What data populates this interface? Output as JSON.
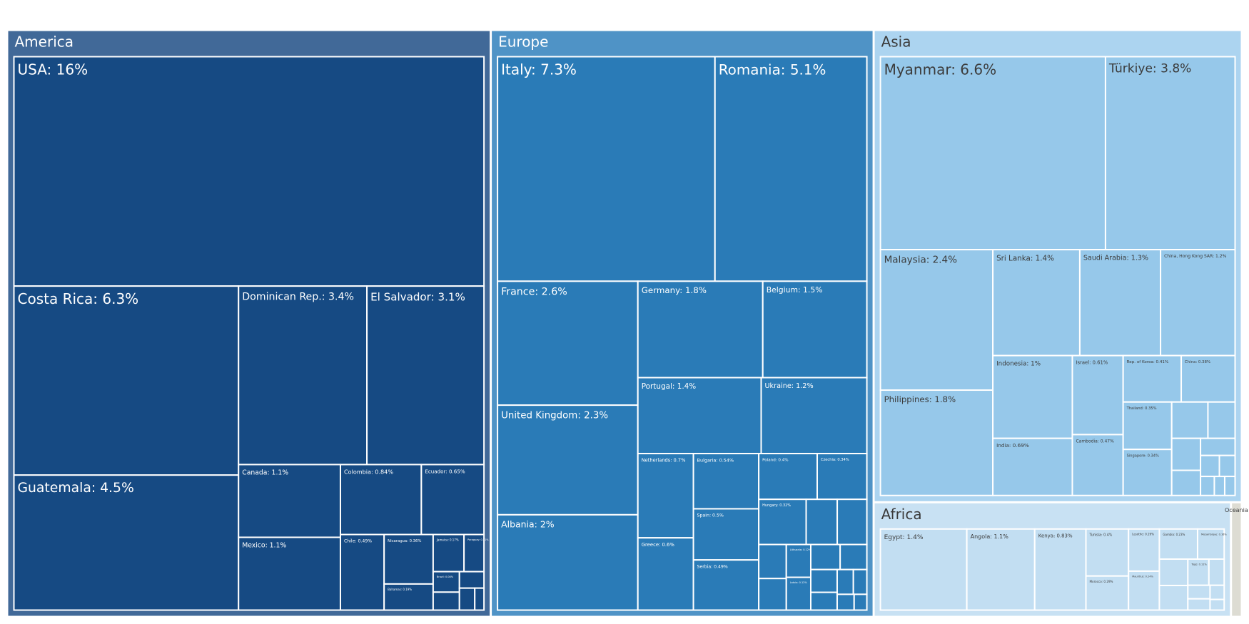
{
  "chart_data": {
    "type": "treemap",
    "value_unit": "%",
    "groups": [
      {
        "name": "America",
        "label": "America",
        "fill": "#416998",
        "tile_fill": "#164a83",
        "text_color": "#ffffff",
        "items": [
          {
            "label": "USA: 16%",
            "value": 16
          },
          {
            "label": "Costa Rica: 6.3%",
            "value": 6.3
          },
          {
            "label": "Dominican Rep.: 3.4%",
            "value": 3.4
          },
          {
            "label": "El Salvador: 3.1%",
            "value": 3.1
          },
          {
            "label": "Guatemala: 4.5%",
            "value": 4.5
          },
          {
            "label": "Canada: 1.1%",
            "value": 1.1
          },
          {
            "label": "Mexico: 1.1%",
            "value": 1.1
          },
          {
            "label": "Colombia: 0.84%",
            "value": 0.84
          },
          {
            "label": "Ecuador: 0.65%",
            "value": 0.65
          },
          {
            "label": "Chile: 0.49%",
            "value": 0.49
          },
          {
            "label": "Nicaragua: 0.36%",
            "value": 0.36
          },
          {
            "label": "Bahamas: 0.19%",
            "value": 0.19
          },
          {
            "label": "Jamaica: 0.17%",
            "value": 0.17
          },
          {
            "label": "Paraguay: 0.11%",
            "value": 0.11
          },
          {
            "label": "Brazil: 0.08%",
            "value": 0.08
          },
          {
            "label": "",
            "value": 0.07
          },
          {
            "label": "",
            "value": 0.06
          },
          {
            "label": "",
            "value": 0.05
          },
          {
            "label": "",
            "value": 0.03
          }
        ]
      },
      {
        "name": "Europe",
        "label": "Europe",
        "fill": "#4f93c6",
        "tile_fill": "#2a7bb7",
        "text_color": "#ffffff",
        "items": [
          {
            "label": "Italy: 7.3%",
            "value": 7.3
          },
          {
            "label": "Romania: 5.1%",
            "value": 5.1
          },
          {
            "label": "France: 2.6%",
            "value": 2.6
          },
          {
            "label": "United Kingdom: 2.3%",
            "value": 2.3
          },
          {
            "label": "Albania: 2%",
            "value": 2
          },
          {
            "label": "Germany: 1.8%",
            "value": 1.8
          },
          {
            "label": "Belgium: 1.5%",
            "value": 1.5
          },
          {
            "label": "Portugal: 1.4%",
            "value": 1.4
          },
          {
            "label": "Ukraine: 1.2%",
            "value": 1.2
          },
          {
            "label": "Netherlands: 0.7%",
            "value": 0.7
          },
          {
            "label": "Greece: 0.6%",
            "value": 0.6
          },
          {
            "label": "Bulgaria: 0.54%",
            "value": 0.54
          },
          {
            "label": "Spain: 0.5%",
            "value": 0.5
          },
          {
            "label": "Serbia: 0.49%",
            "value": 0.49
          },
          {
            "label": "Poland: 0.4%",
            "value": 0.4
          },
          {
            "label": "Czechia: 0.34%",
            "value": 0.34
          },
          {
            "label": "Hungary: 0.32%",
            "value": 0.32
          },
          {
            "label": "",
            "value": 0.21
          },
          {
            "label": "",
            "value": 0.2
          },
          {
            "label": "",
            "value": 0.14
          },
          {
            "label": "",
            "value": 0.13
          },
          {
            "label": "Lithuania: 0.12%",
            "value": 0.12
          },
          {
            "label": "Latvia: 0.12%",
            "value": 0.12
          },
          {
            "label": "",
            "value": 0.11
          },
          {
            "label": "",
            "value": 0.1
          },
          {
            "label": "",
            "value": 0.09
          },
          {
            "label": "",
            "value": 0.07
          },
          {
            "label": "",
            "value": 0.06
          },
          {
            "label": "",
            "value": 0.05
          },
          {
            "label": "",
            "value": 0.04
          },
          {
            "label": "",
            "value": 0.03
          }
        ]
      },
      {
        "name": "Asia",
        "label": "Asia",
        "fill": "#acd4f0",
        "tile_fill": "#96c8ea",
        "text_color": "#3b3b3b",
        "items": [
          {
            "label": "Myanmar: 6.6%",
            "value": 6.6
          },
          {
            "label": "Türkiye: 3.8%",
            "value": 3.8
          },
          {
            "label": "Malaysia: 2.4%",
            "value": 2.4
          },
          {
            "label": "Philippines: 1.8%",
            "value": 1.8
          },
          {
            "label": "Sri Lanka: 1.4%",
            "value": 1.4
          },
          {
            "label": "Saudi Arabia: 1.3%",
            "value": 1.3
          },
          {
            "label": "China, Hong Kong SAR: 1.2%",
            "value": 1.2
          },
          {
            "label": "Indonesia: 1%",
            "value": 1
          },
          {
            "label": "India: 0.69%",
            "value": 0.69
          },
          {
            "label": "Israel: 0.61%",
            "value": 0.61
          },
          {
            "label": "Cambodia: 0.47%",
            "value": 0.47
          },
          {
            "label": "Rep. of Korea: 0.41%",
            "value": 0.41
          },
          {
            "label": "China: 0.38%",
            "value": 0.38
          },
          {
            "label": "Thailand: 0.35%",
            "value": 0.35
          },
          {
            "label": "Singapore: 0.34%",
            "value": 0.34
          },
          {
            "label": "",
            "value": 0.2
          },
          {
            "label": "",
            "value": 0.15
          },
          {
            "label": "",
            "value": 0.14
          },
          {
            "label": "",
            "value": 0.11
          },
          {
            "label": "",
            "value": 0.09
          },
          {
            "label": "",
            "value": 0.06
          },
          {
            "label": "",
            "value": 0.05
          },
          {
            "label": "",
            "value": 0.04
          },
          {
            "label": "",
            "value": 0.03
          },
          {
            "label": "",
            "value": 0.03
          }
        ]
      },
      {
        "name": "Africa",
        "label": "Africa",
        "fill": "#c8e1f3",
        "tile_fill": "#c2def2",
        "text_color": "#3b3b3b",
        "items": [
          {
            "label": "Egypt: 1.4%",
            "value": 1.4
          },
          {
            "label": "Angola: 1.1%",
            "value": 1.1
          },
          {
            "label": "Kenya: 0.83%",
            "value": 0.83
          },
          {
            "label": "Tunisia: 0.4%",
            "value": 0.4
          },
          {
            "label": "Morocco: 0.29%",
            "value": 0.29
          },
          {
            "label": "Lesotho: 0.26%",
            "value": 0.26
          },
          {
            "label": "Mauritius: 0.24%",
            "value": 0.24
          },
          {
            "label": "Gambia: 0.23%",
            "value": 0.23
          },
          {
            "label": "Mozambique: 0.16%",
            "value": 0.16
          },
          {
            "label": "",
            "value": 0.15
          },
          {
            "label": "",
            "value": 0.14
          },
          {
            "label": "Togo: 0.11%",
            "value": 0.11
          },
          {
            "label": "",
            "value": 0.08
          },
          {
            "label": "",
            "value": 0.06
          },
          {
            "label": "",
            "value": 0.05
          },
          {
            "label": "",
            "value": 0.04
          },
          {
            "label": "",
            "value": 0.03
          }
        ]
      },
      {
        "name": "Oceania",
        "label": "Oceania",
        "fill": "#dddcd3",
        "tile_fill": "#d3d2c7",
        "text_color": "#3b3b3b",
        "items": [
          {
            "label": "",
            "value": 0.12
          },
          {
            "label": "",
            "value": 0.03
          },
          {
            "label": "",
            "value": 0.02
          }
        ]
      }
    ]
  }
}
